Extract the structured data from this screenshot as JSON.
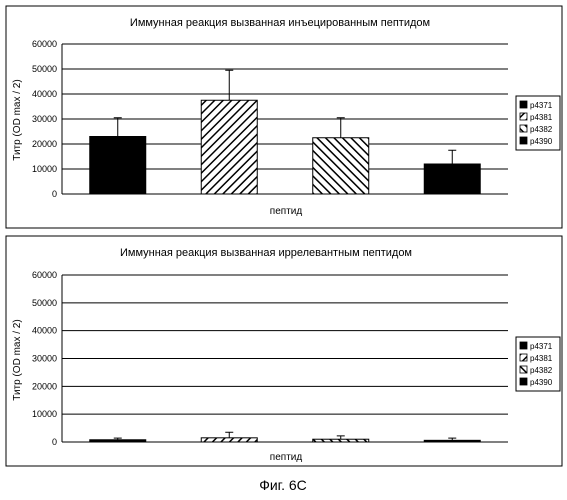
{
  "figure_caption": "Фиг. 6С",
  "chart_data": [
    {
      "type": "bar",
      "title": "Иммунная реакция вызванная инъецированным пептидом",
      "xlabel": "пептид",
      "ylabel": "Титр (OD max / 2)",
      "ylim": [
        0,
        60000
      ],
      "yticks": [
        0,
        10000,
        20000,
        30000,
        40000,
        50000,
        60000
      ],
      "tick_labels": [
        "0",
        "10000",
        "20000",
        "30000",
        "40000",
        "50000",
        "60000"
      ],
      "grid": true,
      "legend_position": "right",
      "series": [
        {
          "name": "p4371",
          "value": 23000,
          "error": 7500,
          "fill": "solid"
        },
        {
          "name": "p4381",
          "value": 37500,
          "error": 12000,
          "fill": "hatch-right"
        },
        {
          "name": "p4382",
          "value": 22500,
          "error": 8000,
          "fill": "hatch-left"
        },
        {
          "name": "p4390",
          "value": 12000,
          "error": 5500,
          "fill": "solid"
        }
      ]
    },
    {
      "type": "bar",
      "title": "Иммунная реакция вызванная иррелевантным пептидом",
      "xlabel": "пептид",
      "ylabel": "Титр (OD max / 2)",
      "ylim": [
        0,
        60000
      ],
      "yticks": [
        0,
        10000,
        20000,
        30000,
        40000,
        50000,
        60000
      ],
      "tick_labels": [
        "0",
        "10000",
        "20000",
        "30000",
        "40000",
        "50000",
        "60000"
      ],
      "grid": true,
      "legend_position": "right",
      "series": [
        {
          "name": "p4371",
          "value": 800,
          "error": 600,
          "fill": "solid"
        },
        {
          "name": "p4381",
          "value": 1500,
          "error": 2000,
          "fill": "hatch-right"
        },
        {
          "name": "p4382",
          "value": 1000,
          "error": 1200,
          "fill": "hatch-left"
        },
        {
          "name": "p4390",
          "value": 600,
          "error": 800,
          "fill": "solid"
        }
      ]
    }
  ]
}
